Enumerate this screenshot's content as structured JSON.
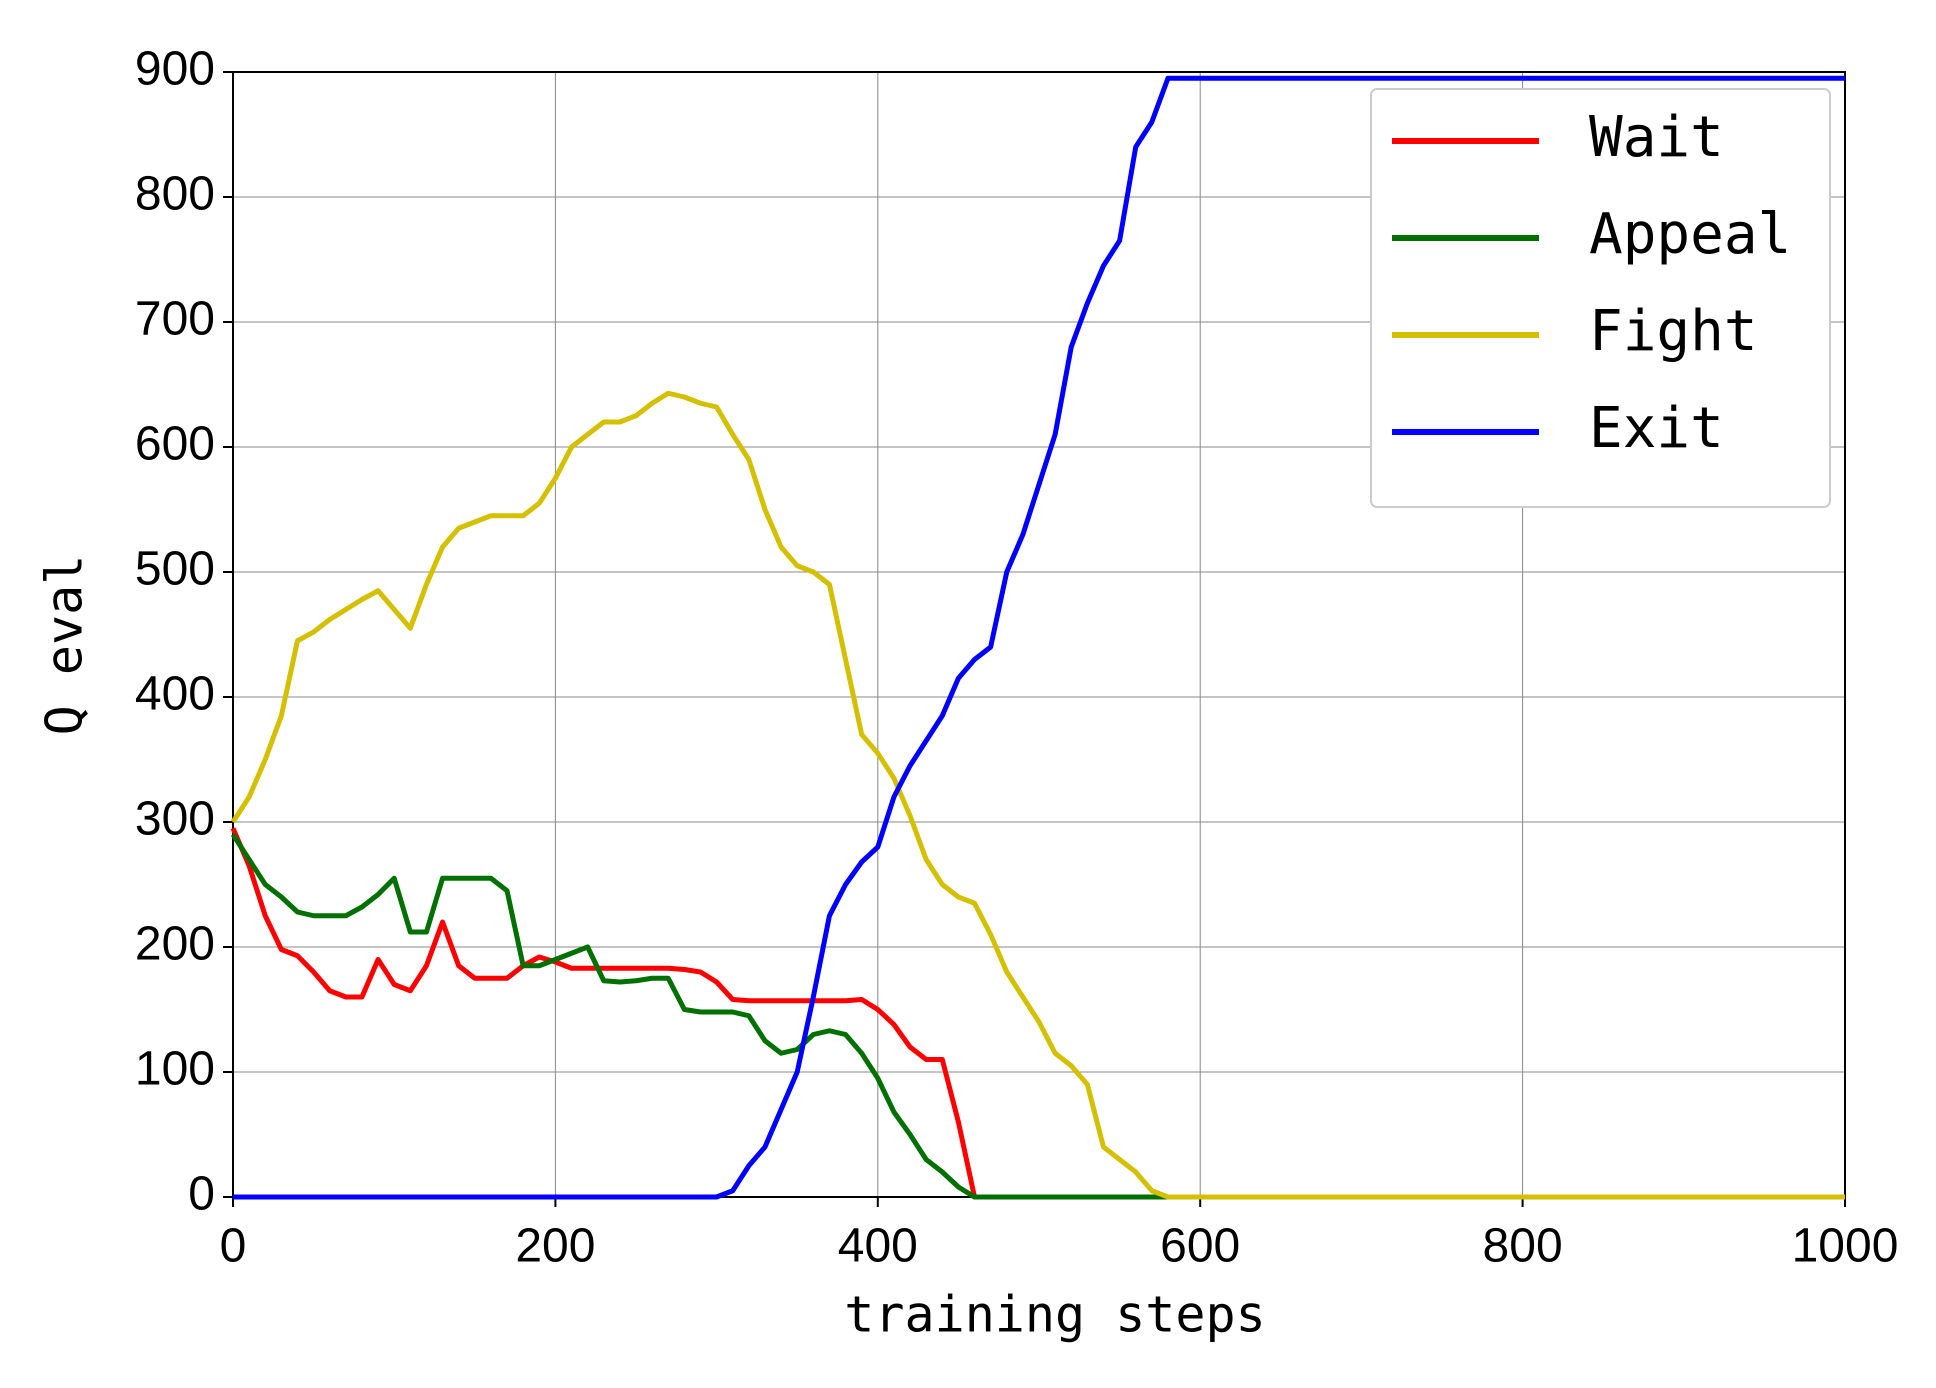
{
  "chart_data": {
    "type": "line",
    "xlabel": "training steps",
    "ylabel": "Q eval",
    "x": [
      0,
      10,
      20,
      30,
      40,
      50,
      60,
      70,
      80,
      90,
      100,
      110,
      120,
      130,
      140,
      150,
      160,
      170,
      180,
      190,
      200,
      210,
      220,
      230,
      240,
      250,
      260,
      270,
      280,
      290,
      300,
      310,
      320,
      330,
      340,
      350,
      360,
      370,
      380,
      390,
      400,
      410,
      420,
      430,
      440,
      450,
      460,
      470,
      480,
      490,
      500,
      510,
      520,
      530,
      540,
      550,
      560,
      570,
      580,
      590,
      600,
      610,
      620,
      630,
      640,
      650,
      660,
      670,
      680,
      690,
      700,
      710,
      720,
      730,
      740,
      750,
      760,
      770,
      780,
      790,
      800,
      810,
      820,
      830,
      840,
      850,
      860,
      870,
      880,
      890,
      900,
      910,
      920,
      930,
      940,
      950,
      960,
      970,
      980,
      990,
      1000
    ],
    "series": [
      {
        "name": "Wait",
        "color": "#ff0000",
        "values": [
          295,
          265,
          225,
          198,
          193,
          180,
          165,
          160,
          160,
          190,
          170,
          165,
          185,
          220,
          185,
          175,
          175,
          175,
          185,
          192,
          188,
          183,
          183,
          183,
          183,
          183,
          183,
          183,
          182,
          180,
          172,
          158,
          157,
          157,
          157,
          157,
          157,
          157,
          157,
          158,
          150,
          138,
          120,
          110,
          110,
          60,
          0,
          0,
          0,
          0,
          0,
          0,
          0,
          0,
          0,
          0,
          0,
          0,
          0,
          null,
          null,
          null,
          null,
          null,
          null,
          null,
          null,
          null,
          null,
          null,
          null,
          null,
          null,
          null,
          null,
          null,
          null,
          null,
          null,
          null,
          null,
          null,
          null,
          null,
          null,
          null,
          null,
          null,
          null,
          null,
          null,
          null,
          null,
          null,
          null,
          null,
          null,
          null,
          null,
          null,
          null
        ]
      },
      {
        "name": "Appeal",
        "color": "#007000",
        "values": [
          290,
          270,
          250,
          240,
          228,
          225,
          225,
          225,
          232,
          242,
          255,
          212,
          212,
          255,
          255,
          255,
          255,
          245,
          185,
          185,
          190,
          195,
          200,
          173,
          172,
          173,
          175,
          175,
          150,
          148,
          148,
          148,
          145,
          125,
          115,
          118,
          130,
          133,
          130,
          115,
          95,
          68,
          50,
          30,
          20,
          8,
          0,
          0,
          0,
          0,
          0,
          0,
          0,
          0,
          0,
          0,
          0,
          0,
          0,
          null,
          null,
          null,
          null,
          null,
          null,
          null,
          null,
          null,
          null,
          null,
          null,
          null,
          null,
          null,
          null,
          null,
          null,
          null,
          null,
          null,
          null,
          null,
          null,
          null,
          null,
          null,
          null,
          null,
          null,
          null,
          null,
          null,
          null,
          null,
          null,
          null,
          null,
          null,
          null,
          null,
          null
        ]
      },
      {
        "name": "Fight",
        "color": "#d4c000",
        "values": [
          300,
          320,
          350,
          385,
          445,
          452,
          462,
          470,
          478,
          485,
          470,
          455,
          490,
          520,
          535,
          540,
          545,
          545,
          545,
          555,
          575,
          600,
          610,
          620,
          620,
          625,
          635,
          643,
          640,
          635,
          632,
          610,
          590,
          550,
          520,
          505,
          500,
          490,
          430,
          370,
          355,
          335,
          305,
          270,
          250,
          240,
          235,
          210,
          180,
          160,
          140,
          115,
          105,
          90,
          40,
          30,
          20,
          5,
          0,
          0,
          0,
          0,
          0,
          0,
          0,
          0,
          0,
          0,
          0,
          0,
          0,
          0,
          0,
          0,
          0,
          0,
          0,
          0,
          0,
          0,
          0,
          0,
          0,
          0,
          0,
          0,
          0,
          0,
          0,
          0,
          0,
          0,
          0,
          0,
          0,
          0,
          0,
          0,
          0,
          0,
          0
        ]
      },
      {
        "name": "Exit",
        "color": "#0000ff",
        "values": [
          0,
          0,
          0,
          0,
          0,
          0,
          0,
          0,
          0,
          0,
          0,
          0,
          0,
          0,
          0,
          0,
          0,
          0,
          0,
          0,
          0,
          0,
          0,
          0,
          0,
          0,
          0,
          0,
          0,
          0,
          0,
          5,
          25,
          40,
          70,
          100,
          160,
          225,
          250,
          268,
          280,
          320,
          345,
          365,
          385,
          415,
          430,
          440,
          500,
          530,
          570,
          610,
          680,
          715,
          745,
          765,
          840,
          860,
          895,
          895,
          895,
          895,
          895,
          895,
          895,
          895,
          895,
          895,
          895,
          895,
          895,
          895,
          895,
          895,
          895,
          895,
          895,
          895,
          895,
          895,
          895,
          895,
          895,
          895,
          895,
          895,
          895,
          895,
          895,
          895,
          895,
          895,
          895,
          895,
          895,
          895,
          895,
          895,
          895,
          895,
          895
        ]
      }
    ],
    "xlim": [
      0,
      1000
    ],
    "xticks": [
      0,
      200,
      400,
      600,
      800,
      1000
    ],
    "ylim": [
      0,
      900
    ],
    "yticks": [
      0,
      100,
      200,
      300,
      400,
      500,
      600,
      700,
      800,
      900
    ],
    "grid": true,
    "legend": "upper right"
  }
}
